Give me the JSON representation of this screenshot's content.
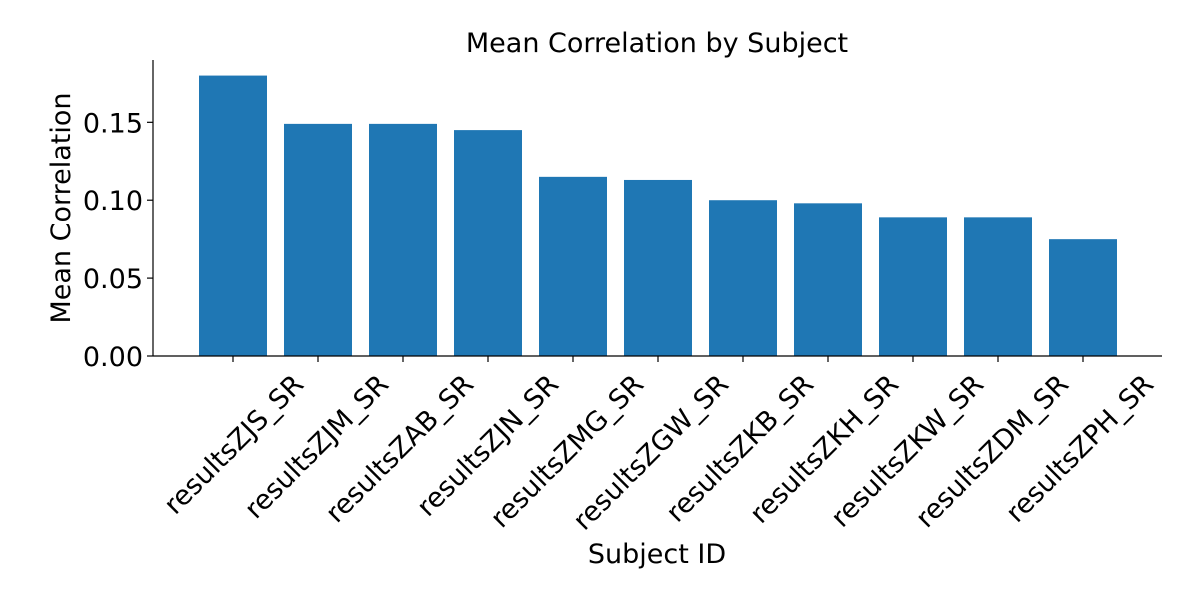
{
  "chart_data": {
    "type": "bar",
    "title": "Mean Correlation by Subject",
    "xlabel": "Subject ID",
    "ylabel": "Mean Correlation",
    "categories": [
      "resultsZJS_SR",
      "resultsZJM_SR",
      "resultsZAB_SR",
      "resultsZJN_SR",
      "resultsZMG_SR",
      "resultsZGW_SR",
      "resultsZKB_SR",
      "resultsZKH_SR",
      "resultsZKW_SR",
      "resultsZDM_SR",
      "resultsZPH_SR"
    ],
    "values": [
      0.18,
      0.149,
      0.149,
      0.145,
      0.115,
      0.113,
      0.1,
      0.098,
      0.089,
      0.089,
      0.075
    ],
    "ylim": [
      0,
      0.19
    ],
    "yticks": [
      "0.00",
      "0.05",
      "0.10",
      "0.15"
    ],
    "grid": false,
    "bar_color": "#1f77b4"
  }
}
